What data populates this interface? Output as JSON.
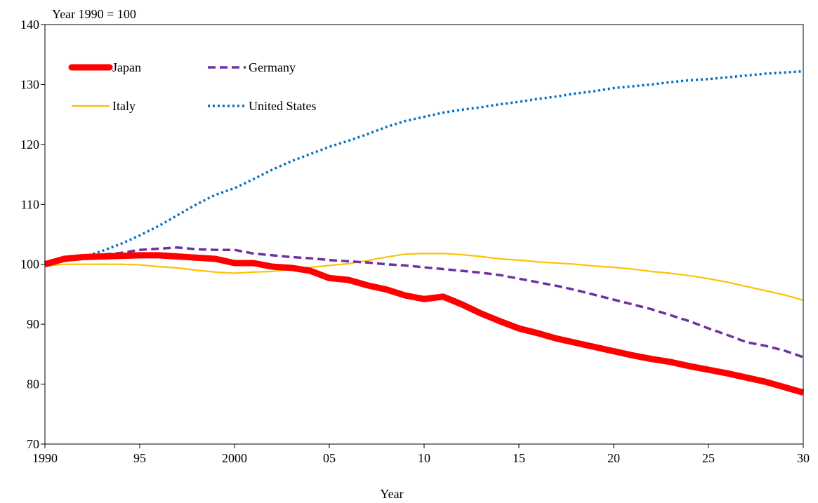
{
  "chart_data": {
    "type": "line",
    "unit_label": "Year 1990 = 100",
    "xlabel": "Year",
    "ylabel": "",
    "xlim": [
      1990,
      2030
    ],
    "ylim": [
      70,
      140
    ],
    "x_tick_values": [
      1990,
      1995,
      2000,
      2005,
      2010,
      2015,
      2020,
      2025,
      2030
    ],
    "x_tick_labels": [
      "1990",
      "95",
      "2000",
      "05",
      "10",
      "15",
      "20",
      "25",
      "30"
    ],
    "y_tick_values": [
      70,
      80,
      90,
      100,
      110,
      120,
      130,
      140
    ],
    "y_tick_labels": [
      "70",
      "80",
      "90",
      "100",
      "110",
      "120",
      "130",
      "140"
    ],
    "grid": false,
    "legend_position": "top-left",
    "x": [
      1990,
      1991,
      1992,
      1993,
      1994,
      1995,
      1996,
      1997,
      1998,
      1999,
      2000,
      2001,
      2002,
      2003,
      2004,
      2005,
      2006,
      2007,
      2008,
      2009,
      2010,
      2011,
      2012,
      2013,
      2014,
      2015,
      2016,
      2017,
      2018,
      2019,
      2020,
      2021,
      2022,
      2023,
      2024,
      2025,
      2026,
      2027,
      2028,
      2029,
      2030
    ],
    "series": [
      {
        "name": "Japan",
        "color": "#ff0000",
        "style": "solid-thick",
        "values": [
          100.0,
          100.9,
          101.2,
          101.3,
          101.4,
          101.5,
          101.5,
          101.3,
          101.1,
          100.9,
          100.2,
          100.2,
          99.6,
          99.4,
          98.9,
          97.7,
          97.4,
          96.5,
          95.8,
          94.8,
          94.2,
          94.6,
          93.3,
          91.8,
          90.5,
          89.3,
          88.5,
          87.6,
          86.9,
          86.2,
          85.5,
          84.8,
          84.2,
          83.7,
          83.0,
          82.4,
          81.8,
          81.1,
          80.4,
          79.5,
          78.6
        ]
      },
      {
        "name": "Germany",
        "color": "#7030a0",
        "style": "dashed",
        "values": [
          100.0,
          100.8,
          101.3,
          101.6,
          101.9,
          102.4,
          102.6,
          102.8,
          102.5,
          102.4,
          102.4,
          101.8,
          101.5,
          101.2,
          101.0,
          100.7,
          100.5,
          100.3,
          100.0,
          99.8,
          99.5,
          99.2,
          98.9,
          98.6,
          98.2,
          97.6,
          97.0,
          96.4,
          95.7,
          94.9,
          94.1,
          93.3,
          92.5,
          91.5,
          90.5,
          89.3,
          88.2,
          87.0,
          86.4,
          85.6,
          84.5
        ]
      },
      {
        "name": "Italy",
        "color": "#ffc000",
        "style": "solid-thin",
        "values": [
          99.7,
          100.0,
          100.0,
          100.0,
          100.0,
          99.9,
          99.6,
          99.4,
          99.0,
          98.7,
          98.5,
          98.7,
          98.8,
          99.2,
          99.5,
          99.8,
          100.1,
          100.6,
          101.2,
          101.7,
          101.8,
          101.8,
          101.6,
          101.3,
          100.9,
          100.7,
          100.4,
          100.2,
          100.0,
          99.7,
          99.5,
          99.2,
          98.8,
          98.5,
          98.1,
          97.6,
          97.0,
          96.3,
          95.6,
          94.9,
          94.0
        ]
      },
      {
        "name": "United States",
        "color": "#0070c0",
        "style": "dotted",
        "values": [
          100.0,
          100.5,
          101.2,
          102.2,
          103.4,
          104.8,
          106.4,
          108.2,
          110.0,
          111.6,
          112.7,
          114.2,
          115.8,
          117.2,
          118.4,
          119.6,
          120.6,
          121.7,
          122.9,
          123.9,
          124.6,
          125.3,
          125.8,
          126.2,
          126.7,
          127.1,
          127.6,
          128.0,
          128.5,
          128.9,
          129.4,
          129.7,
          130.0,
          130.4,
          130.7,
          130.9,
          131.2,
          131.5,
          131.8,
          132.0,
          132.2
        ]
      }
    ]
  }
}
